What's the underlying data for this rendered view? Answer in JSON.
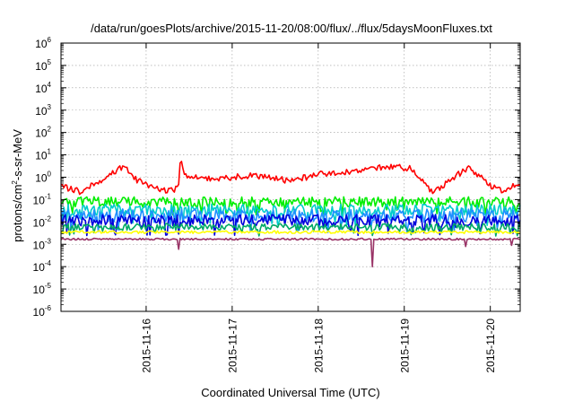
{
  "chart_data": {
    "type": "line",
    "title": "/data/run/goesPlots/archive/2015-11-20/08:00/flux/../flux/5daysMoonFluxes.txt",
    "xlabel": "Coordinated Universal Time (UTC)",
    "ylabel": {
      "prefix": "protons/cm",
      "sup": "2",
      "suffix": "-s-sr-MeV"
    },
    "y_scale": "log",
    "ylim": [
      1e-06,
      1000000.0
    ],
    "y_ticks": [
      {
        "base": "10",
        "exp": "-6"
      },
      {
        "base": "10",
        "exp": "-5"
      },
      {
        "base": "10",
        "exp": "-4"
      },
      {
        "base": "10",
        "exp": "-3"
      },
      {
        "base": "10",
        "exp": "-2"
      },
      {
        "base": "10",
        "exp": "-1"
      },
      {
        "base": "10",
        "exp": "0"
      },
      {
        "base": "10",
        "exp": "1"
      },
      {
        "base": "10",
        "exp": "2"
      },
      {
        "base": "10",
        "exp": "3"
      },
      {
        "base": "10",
        "exp": "4"
      },
      {
        "base": "10",
        "exp": "5"
      },
      {
        "base": "10",
        "exp": "6"
      }
    ],
    "xlim": [
      "2015-11-15T00:15",
      "2015-11-20T08:20"
    ],
    "x_ticks": [
      "2015-11-16",
      "2015-11-17",
      "2015-11-18",
      "2015-11-19",
      "2015-11-20"
    ],
    "grid": true,
    "legend": "none",
    "series": [
      {
        "color": "#ff0000",
        "base": 0.6,
        "spread": 0.28,
        "dips": [],
        "keypoints": [
          [
            "2015-11-15T00:15",
            0.4
          ],
          [
            "2015-11-15T06:00",
            0.22
          ],
          [
            "2015-11-15T14:00",
            1.3
          ],
          [
            "2015-11-15T18:00",
            3.5
          ],
          [
            "2015-11-15T21:00",
            0.8
          ],
          [
            "2015-11-16T04:00",
            0.25
          ],
          [
            "2015-11-16T09:00",
            0.3
          ],
          [
            "2015-11-16T09:30",
            6.0
          ],
          [
            "2015-11-16T11:00",
            1.2
          ],
          [
            "2015-11-16T18:00",
            0.8
          ],
          [
            "2015-11-17T06:00",
            1.2
          ],
          [
            "2015-11-17T16:00",
            0.7
          ],
          [
            "2015-11-18T02:00",
            1.5
          ],
          [
            "2015-11-18T12:00",
            2.0
          ],
          [
            "2015-11-18T20:00",
            3.0
          ],
          [
            "2015-11-19T02:00",
            2.5
          ],
          [
            "2015-11-19T06:00",
            0.4
          ],
          [
            "2015-11-19T08:00",
            0.2
          ],
          [
            "2015-11-19T14:00",
            1.0
          ],
          [
            "2015-11-19T18:00",
            2.8
          ],
          [
            "2015-11-20T00:00",
            0.4
          ],
          [
            "2015-11-20T04:00",
            0.22
          ],
          [
            "2015-11-20T08:20",
            0.6
          ]
        ]
      },
      {
        "color": "#00ee00",
        "base": 0.08,
        "spread": 0.45,
        "dips": [],
        "keypoints": []
      },
      {
        "color": "#00cccc",
        "base": 0.035,
        "spread": 0.5,
        "dips": [],
        "keypoints": []
      },
      {
        "color": "#1e90ff",
        "base": 0.02,
        "spread": 0.55,
        "dips": [],
        "keypoints": []
      },
      {
        "color": "#0000dd",
        "base": 0.012,
        "spread": 0.5,
        "dips": [],
        "keypoints": []
      },
      {
        "color": "#00aa66",
        "base": 0.006,
        "spread": 0.3,
        "dips": [],
        "keypoints": []
      },
      {
        "color": "#ffff00",
        "base": 0.0035,
        "spread": 0.12,
        "dips": [],
        "keypoints": []
      },
      {
        "color": "#993366",
        "base": 0.0017,
        "spread": 0.08,
        "dips": [
          [
            "2015-11-16T09:00",
            0.0006
          ],
          [
            "2015-11-18T15:00",
            0.0001
          ],
          [
            "2015-11-19T17:00",
            0.0008
          ],
          [
            "2015-11-20T06:00",
            0.0009
          ]
        ],
        "keypoints": []
      }
    ]
  }
}
